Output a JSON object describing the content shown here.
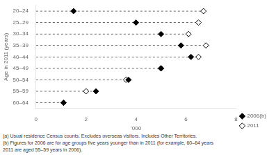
{
  "chart_data": {
    "type": "dot",
    "categories": [
      "20–24",
      "25–29",
      "30–34",
      "35–39",
      "40–44",
      "45–49",
      "50–54",
      "55–59",
      "60–64"
    ],
    "series": [
      {
        "name": "2006(b)",
        "color": "#000000",
        "marker": "diamond",
        "values": [
          1.5,
          4.0,
          5.0,
          5.8,
          6.2,
          5.0,
          3.7,
          2.4,
          1.1
        ]
      },
      {
        "name": "2011",
        "color": "#000000",
        "marker": "open-diamond",
        "values": [
          6.7,
          6.5,
          6.1,
          6.8,
          6.5,
          5.0,
          3.6,
          2.0,
          1.1
        ]
      }
    ],
    "xlabel": "’000",
    "ylabel": "Age in 2011 (years)",
    "xlim": [
      0,
      8
    ],
    "xticks": [
      0,
      2,
      4,
      6,
      8
    ],
    "grid": false,
    "legend": "lower right",
    "annotations": [
      "(a) Usual residence Census counts.  Excludes overseas visitors.  Includes Other Territories.",
      "(b) Figures for 2006 are for age groups five years younger than in 2011 (for example, 60–64 years",
      "2011 are aged 55–59 years in 2006)."
    ]
  }
}
